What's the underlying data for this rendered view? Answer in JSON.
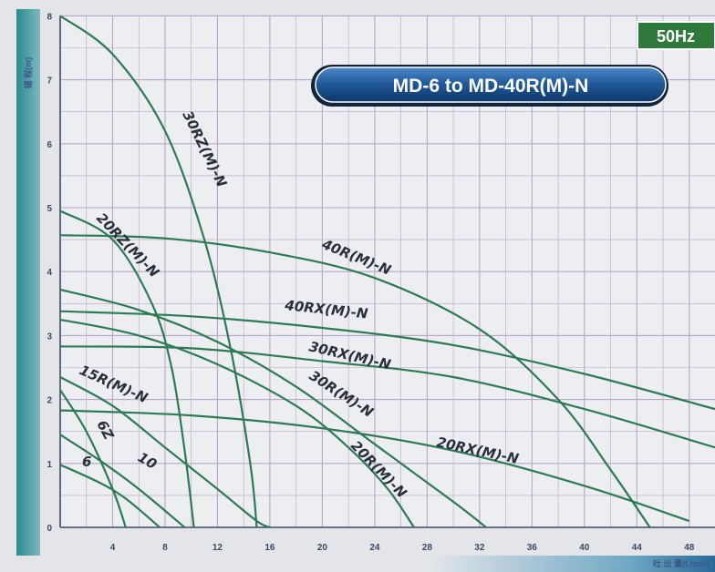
{
  "badge": {
    "frequency": "50Hz",
    "color": "#2f7a3a"
  },
  "header": {
    "title": "MD-6 to  MD-40R(M)-N"
  },
  "chart_data": {
    "type": "line",
    "ylabel": "揚 程(m)",
    "xlabel": "吐 出 量(L/min)",
    "xlim": [
      0,
      50
    ],
    "ylim": [
      0,
      8
    ],
    "x_ticks": [
      4,
      8,
      12,
      16,
      20,
      24,
      28,
      32,
      36,
      40,
      44,
      48
    ],
    "x_tick_labels": [
      "4",
      "8",
      "12",
      "16",
      "20",
      "24",
      "28",
      "32",
      "36",
      "40",
      "44",
      "48"
    ],
    "y_ticks": [
      0,
      1,
      2,
      3,
      4,
      5,
      6,
      7,
      8
    ],
    "y_tick_labels": [
      "0",
      "1",
      "2",
      "3",
      "4",
      "5",
      "6",
      "7",
      "8"
    ],
    "grid": true,
    "curve_color": "#2e7a55",
    "series": [
      {
        "name": "30RZ(M)-N",
        "x": [
          0,
          4,
          8,
          11,
          13,
          14.5,
          15
        ],
        "y": [
          8,
          7.4,
          6.2,
          4.5,
          2.8,
          1.0,
          0
        ]
      },
      {
        "name": "20RZ(M)-N",
        "x": [
          0,
          4,
          7,
          8.5,
          9.5,
          10.2
        ],
        "y": [
          4.95,
          4.5,
          3.5,
          2.5,
          1.2,
          0
        ]
      },
      {
        "name": "40R(M)-N",
        "x": [
          0,
          8,
          16,
          24,
          32,
          38,
          42,
          45
        ],
        "y": [
          4.57,
          4.52,
          4.3,
          3.9,
          3.1,
          2.0,
          0.9,
          0
        ]
      },
      {
        "name": "40RX(M)-N",
        "x": [
          0,
          10,
          20,
          30,
          40,
          50
        ],
        "y": [
          3.38,
          3.3,
          3.12,
          2.85,
          2.4,
          1.85
        ]
      },
      {
        "name": "30RX(M)-N",
        "x": [
          0,
          10,
          20,
          30,
          40,
          50
        ],
        "y": [
          2.83,
          2.8,
          2.6,
          2.35,
          1.85,
          1.25
        ]
      },
      {
        "name": "30R(M)-N",
        "x": [
          0,
          6,
          12,
          18,
          24,
          30,
          32.5
        ],
        "y": [
          3.72,
          3.4,
          2.9,
          2.2,
          1.3,
          0.4,
          0
        ]
      },
      {
        "name": "20R(M)-N",
        "x": [
          0,
          6,
          12,
          18,
          22,
          25,
          27
        ],
        "y": [
          3.25,
          3.0,
          2.55,
          1.9,
          1.25,
          0.6,
          0
        ]
      },
      {
        "name": "20RX(M)-N",
        "x": [
          0,
          10,
          20,
          30,
          40,
          48
        ],
        "y": [
          1.83,
          1.75,
          1.55,
          1.2,
          0.65,
          0.1
        ]
      },
      {
        "name": "15R(M)-N",
        "x": [
          0,
          4,
          8,
          12,
          15,
          16
        ],
        "y": [
          2.35,
          1.9,
          1.25,
          0.6,
          0.1,
          0
        ]
      },
      {
        "name": "6Z",
        "x": [
          0,
          2,
          4,
          5
        ],
        "y": [
          2.15,
          1.5,
          0.6,
          0
        ]
      },
      {
        "name": "10",
        "x": [
          0,
          3,
          6,
          9.5
        ],
        "y": [
          1.45,
          1.05,
          0.6,
          0
        ]
      },
      {
        "name": "6",
        "x": [
          0,
          3,
          5,
          7.6
        ],
        "y": [
          0.98,
          0.7,
          0.45,
          0
        ]
      }
    ]
  }
}
